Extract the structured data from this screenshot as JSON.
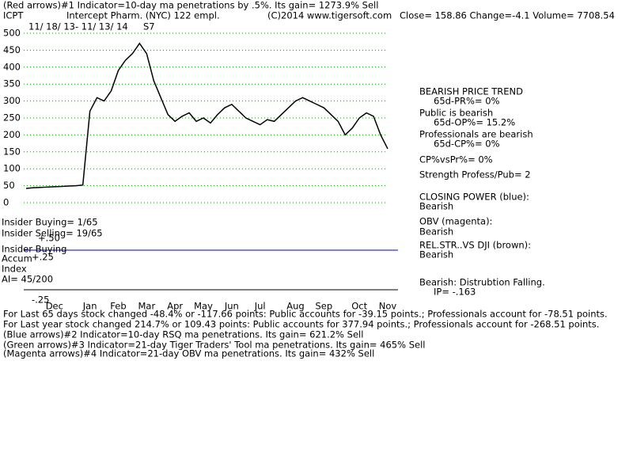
{
  "chart_data": {
    "type": "line",
    "categories": [
      null,
      null,
      null,
      null,
      "Dec",
      null,
      null,
      null,
      null,
      "Jan",
      null,
      null,
      null,
      "Feb",
      null,
      null,
      null,
      "Mar",
      null,
      null,
      null,
      "Apr",
      null,
      null,
      null,
      "May",
      null,
      null,
      null,
      "Jun",
      null,
      null,
      null,
      "Jul",
      null,
      null,
      null,
      null,
      "Aug",
      null,
      null,
      null,
      "Sep",
      null,
      null,
      null,
      null,
      "Oct",
      null,
      null,
      null,
      "Nov"
    ],
    "series": [
      {
        "color": "#000000",
        "values": [
          42,
          44,
          45,
          46,
          47,
          48,
          49,
          50,
          52,
          270,
          310,
          300,
          330,
          390,
          420,
          440,
          470,
          440,
          360,
          310,
          260,
          240,
          255,
          265,
          240,
          250,
          235,
          260,
          280,
          290,
          270,
          250,
          240,
          230,
          245,
          240,
          260,
          280,
          300,
          310,
          300,
          290,
          280,
          260,
          240,
          200,
          220,
          250,
          265,
          255,
          200,
          159
        ]
      }
    ],
    "ylim": [
      0,
      500
    ],
    "yticks": [
      0,
      50,
      100,
      150,
      200,
      250,
      300,
      350,
      400,
      450,
      500
    ],
    "grid": true,
    "grid_color": "#00a000",
    "annotations": [
      "(Red arrows)#1 Indicator=10-day ma penetrations by .5%. Its gain= 1273.9% Sell",
      "ICPT",
      "Intercept Pharm. (NYC) 122 empl.",
      "(C)2014 www.tigersoft.com",
      "Close=  158.86  Change=-4.1 Volume= 7708.54",
      "11/ 18/ 13- 11/ 13/ 14",
      "S7",
      "BEARISH PRICE TREND",
      "65d-PR%= 0%",
      "Public is bearish",
      "65d-OP%= 15.2%",
      "Professionals are bearish",
      "65d-CP%= 0%",
      "CP%vsPr%=  0%",
      "Strength Profess/Pub= 2",
      "CLOSING POWER (blue):",
      "Bearish",
      "OBV (magenta):",
      "Bearish",
      "REL.STR..VS DJI (brown):",
      "Bearish",
      "Bearish: Distrubtion Falling.",
      "IP= -.163",
      "Insider Buying= 1/65",
      "Insider Selling= 19/65",
      "Insider Buying",
      "Accum",
      "+.50",
      "+.25",
      "Index",
      "AI= 45/200",
      "-.25",
      "For Last 65 days stock changed -48.4% or -117.66 points:  Public accounts for -39.15 points.;  Professionals account for -78.51 points.",
      "For Last year stock changed  214.7% or  109.43 points:  Public accounts for  377.94 points.;  Professionals account for -268.51 points.",
      "(Blue arrows)#2 Indicator=10-day RSQ ma penetrations. Its gain= 621.2% Sell",
      "(Green arrows)#3 Indicator=21-day Tiger Traders' Tool ma penetrations. Its gain= 465% Sell",
      "(Magenta arrows)#4 Indicator=21-day OBV ma penetrations. Its gain= 432% Sell"
    ]
  }
}
